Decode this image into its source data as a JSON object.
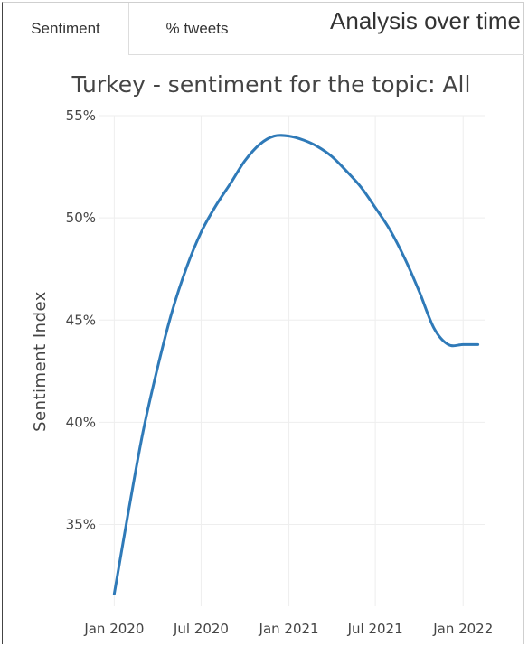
{
  "tabs": [
    {
      "label": "Sentiment",
      "active": true
    },
    {
      "label": "% tweets",
      "active": false
    }
  ],
  "section_title": "Analysis over time",
  "chart_data": {
    "type": "line",
    "title": "Turkey - sentiment for the topic: All",
    "xlabel": "",
    "ylabel": "Sentiment Index",
    "x_ticks": [
      "Jan 2020",
      "Jul 2020",
      "Jan 2021",
      "Jul 2021",
      "Jan 2022"
    ],
    "x_tick_dates": [
      "2020-01-01",
      "2020-07-01",
      "2021-01-01",
      "2021-07-01",
      "2022-01-01"
    ],
    "y_ticks": [
      35,
      40,
      45,
      50,
      55
    ],
    "y_tick_labels": [
      "35%",
      "40%",
      "45%",
      "50%",
      "55%"
    ],
    "ylim": [
      31,
      55
    ],
    "xlim": [
      "2019-12-01",
      "2022-02-15"
    ],
    "grid": true,
    "color": "#2f7ab8",
    "series": [
      {
        "x": [
          "2020-01-01",
          "2020-02-01",
          "2020-03-01",
          "2020-04-01",
          "2020-05-01",
          "2020-06-01",
          "2020-07-01",
          "2020-08-01",
          "2020-09-01",
          "2020-10-01",
          "2020-11-01",
          "2020-12-01",
          "2021-01-01",
          "2021-02-01",
          "2021-03-01",
          "2021-04-01",
          "2021-05-01",
          "2021-06-01",
          "2021-07-01",
          "2021-08-01",
          "2021-09-01",
          "2021-10-01",
          "2021-11-01",
          "2021-12-01",
          "2022-01-01",
          "2022-02-01"
        ],
        "y": [
          31.6,
          35.8,
          39.5,
          42.7,
          45.4,
          47.6,
          49.3,
          50.6,
          51.7,
          52.8,
          53.6,
          54.0,
          54.0,
          53.8,
          53.5,
          53.0,
          52.3,
          51.5,
          50.5,
          49.4,
          48.0,
          46.4,
          44.6,
          43.8,
          43.8,
          43.8
        ]
      }
    ]
  }
}
